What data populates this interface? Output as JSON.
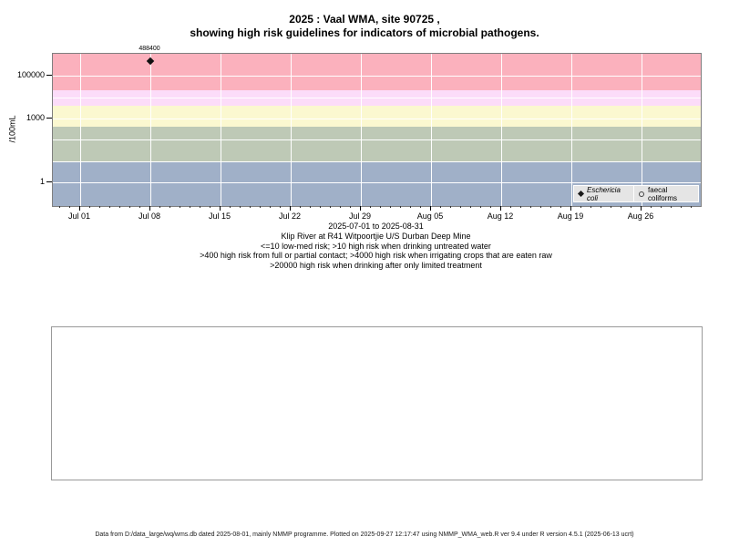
{
  "title": {
    "line1": "2025 : Vaal WMA, site 90725 ,",
    "line2": "showing high risk guidelines for indicators of microbial pathogens."
  },
  "chart_data": {
    "type": "scatter",
    "title": "2025 : Vaal WMA, site 90725 , showing high risk guidelines for indicators of microbial pathogens.",
    "xlabel": "2025-07-01 to 2025-08-31",
    "ylabel": "/100mL",
    "y_axis": {
      "scale": "log10",
      "ticks": [
        1,
        1000,
        100000
      ],
      "tick_labels": [
        "1",
        "1000",
        "100000"
      ],
      "log_range": [
        -1.1,
        6.03
      ]
    },
    "x_axis": {
      "tick_labels": [
        "Jul 01",
        "Jul 08",
        "Jul 15",
        "Jul 22",
        "Jul 29",
        "Aug 05",
        "Aug 12",
        "Aug 19",
        "Aug 26"
      ],
      "tick_day_offsets": [
        0,
        7,
        14,
        21,
        28,
        35,
        42,
        49,
        56
      ],
      "minor_day_range": [
        -2,
        61
      ],
      "range": [
        "2025-06-28",
        "2025-08-31"
      ]
    },
    "gridline_color": "#ffffff",
    "series": [
      {
        "name": "Eschericia coli",
        "symbol": "filled-diamond",
        "italic": true,
        "points": [
          {
            "date": "2025-07-08",
            "day_offset": 7,
            "value": 488400,
            "label": "488400"
          }
        ]
      },
      {
        "name": "faecal coliforms",
        "symbol": "open-circle",
        "italic": false,
        "points": []
      }
    ],
    "risk_bands": [
      {
        "meaning": "low-med risk",
        "value_min": null,
        "value_max": 10,
        "color": "#a0b0c8"
      },
      {
        "meaning": "high risk when drinking untreated water",
        "value_min": 10,
        "value_max": 400,
        "color": "#bec9b6"
      },
      {
        "meaning": "high risk from full or partial contact",
        "value_min": 400,
        "value_max": 4000,
        "color": "#fbf8d0"
      },
      {
        "meaning": "high risk when irrigating crops that are eaten raw",
        "value_min": 4000,
        "value_max": 20000,
        "color": "#fcdcf9"
      },
      {
        "meaning": "high risk when drinking after only limited treatment",
        "value_min": 20000,
        "value_max": null,
        "color": "#fbb1bd"
      }
    ],
    "legend_position": "bottom-right"
  },
  "caption": {
    "lines": [
      "Klip River at R41 Witpoortjie U/S Durban Deep Mine",
      "<=10 low-med risk; >10 high risk when drinking untreated water",
      ">400 high risk from full or partial contact; >4000 high risk when irrigating crops that are eaten raw",
      ">20000 high risk when drinking after only limited treatment"
    ]
  },
  "footer": {
    "text": "Data from D:/data_large/wq/wms.db dated 2025-08-01, mainly NMMP programme. Plotted on 2025-09-27 12:17:47 using NMMP_WMA_web.R ver 9.4 under R version 4.5.1 (2025-06-13 ucrt)"
  }
}
